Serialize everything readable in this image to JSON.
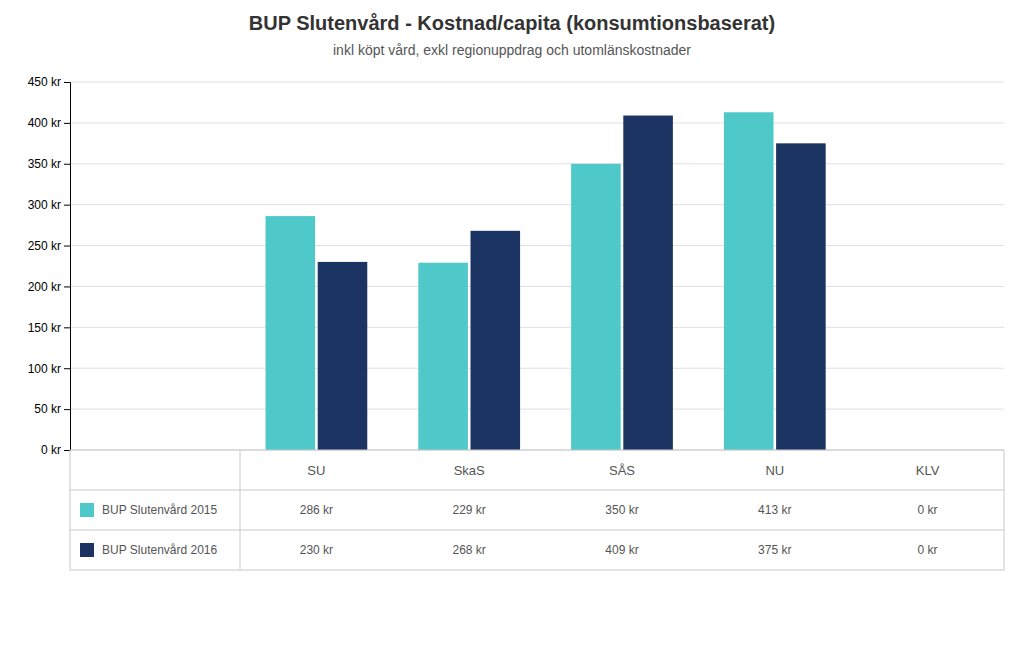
{
  "chart_data": {
    "type": "bar",
    "title": "BUP Slutenvård - Kostnad/capita (konsumtionsbaserat)",
    "subtitle": "inkl köpt vård, exkl regionuppdrag och utomlänskostnader",
    "categories": [
      "SU",
      "SkaS",
      "SÅS",
      "NU",
      "KLV"
    ],
    "series": [
      {
        "name": "BUP Slutenvård 2015",
        "color": "#4EC8C8",
        "values": [
          286,
          229,
          350,
          413,
          0
        ],
        "value_labels": [
          "286 kr",
          "229 kr",
          "350 kr",
          "413 kr",
          "0 kr"
        ]
      },
      {
        "name": "BUP Slutenvård 2016",
        "color": "#1C3461",
        "values": [
          230,
          268,
          409,
          375,
          0
        ],
        "value_labels": [
          "230 kr",
          "268 kr",
          "409 kr",
          "375 kr",
          "0 kr"
        ]
      }
    ],
    "ylim": [
      0,
      450
    ],
    "yticks": [
      {
        "value": 0,
        "label": "0 kr"
      },
      {
        "value": 50,
        "label": "50 kr"
      },
      {
        "value": 100,
        "label": "100 kr"
      },
      {
        "value": 150,
        "label": "150 kr"
      },
      {
        "value": 200,
        "label": "200 kr"
      },
      {
        "value": 250,
        "label": "250 kr"
      },
      {
        "value": 300,
        "label": "300 kr"
      },
      {
        "value": 350,
        "label": "350 kr"
      },
      {
        "value": 400,
        "label": "400 kr"
      },
      {
        "value": 450,
        "label": "450 kr"
      }
    ],
    "grid": true
  }
}
